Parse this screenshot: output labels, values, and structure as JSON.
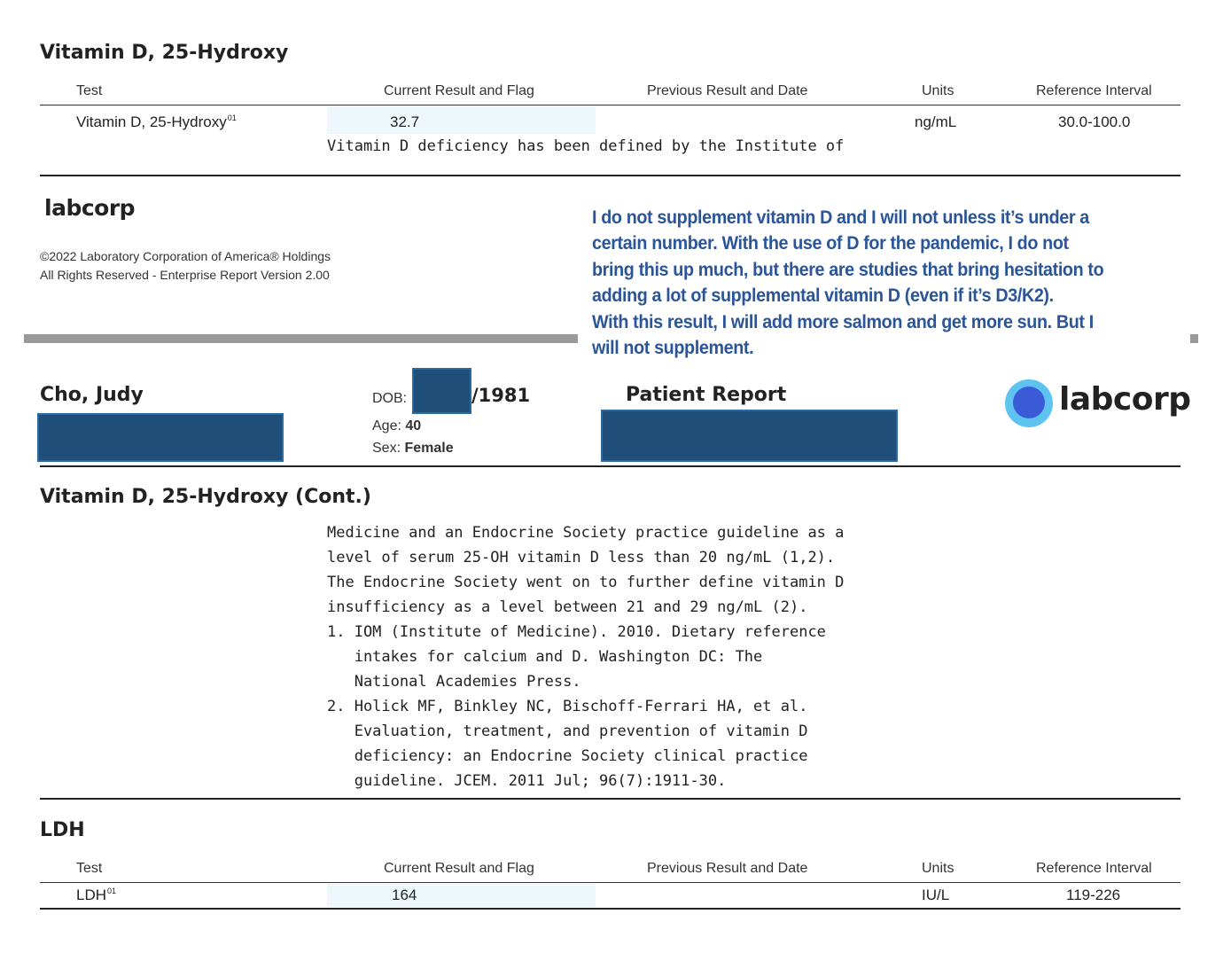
{
  "section1": {
    "title": "Vitamin D, 25-Hydroxy",
    "headers": {
      "test": "Test",
      "current": "Current Result and Flag",
      "previous": "Previous Result and Date",
      "units": "Units",
      "reference": "Reference Interval"
    },
    "row": {
      "test": "Vitamin D, 25-Hydroxy",
      "sup": "01",
      "result": "32.7",
      "units": "ng/mL",
      "reference": "30.0-100.0"
    },
    "comment": "Vitamin D deficiency has been defined by the Institute of"
  },
  "footer": {
    "logo": "labcorp",
    "copyright": "©2022 Laboratory Corporation of America® Holdings",
    "rights": "All Rights Reserved - Enterprise Report Version 2.00"
  },
  "annotation": {
    "lines": [
      "I do not supplement vitamin D and I will not unless it’s under a",
      "certain number. With the use of D for the pandemic, I do not",
      "bring this up much, but there are studies that bring hesitation to",
      "adding a lot of supplemental vitamin D (even if it’s D3/K2).",
      "With this result, I will add more salmon and get more sun. But I",
      "will not supplement."
    ]
  },
  "header": {
    "patient_name": "Cho, Judy",
    "dob_label": "DOB:",
    "dob_year": "/1981",
    "age_label": "Age:",
    "age_value": "40",
    "sex_label": "Sex:",
    "sex_value": "Female",
    "report_title": "Patient Report",
    "logo": "labcorp",
    "logo_color": "#2b8be6"
  },
  "section2": {
    "title": "Vitamin D, 25-Hydroxy (Cont.)",
    "lines": [
      "Medicine and an Endocrine Society practice guideline as a",
      "level of serum 25-OH vitamin D less than 20 ng/mL (1,2).",
      "The Endocrine Society went on to further define vitamin D",
      "insufficiency as a level between 21 and 29 ng/mL (2).",
      "1. IOM (Institute of Medicine). 2010. Dietary reference",
      "   intakes for calcium and D. Washington DC: The",
      "   National Academies Press.",
      "2. Holick MF, Binkley NC, Bischoff-Ferrari HA, et al.",
      "   Evaluation, treatment, and prevention of vitamin D",
      "   deficiency: an Endocrine Society clinical practice",
      "   guideline. JCEM. 2011 Jul; 96(7):1911-30."
    ]
  },
  "section3": {
    "title": "LDH",
    "headers": {
      "test": "Test",
      "current": "Current Result and Flag",
      "previous": "Previous Result and Date",
      "units": "Units",
      "reference": "Reference Interval"
    },
    "row": {
      "test": "LDH",
      "sup": "01",
      "result": "164",
      "units": "IU/L",
      "reference": "119-226"
    }
  }
}
